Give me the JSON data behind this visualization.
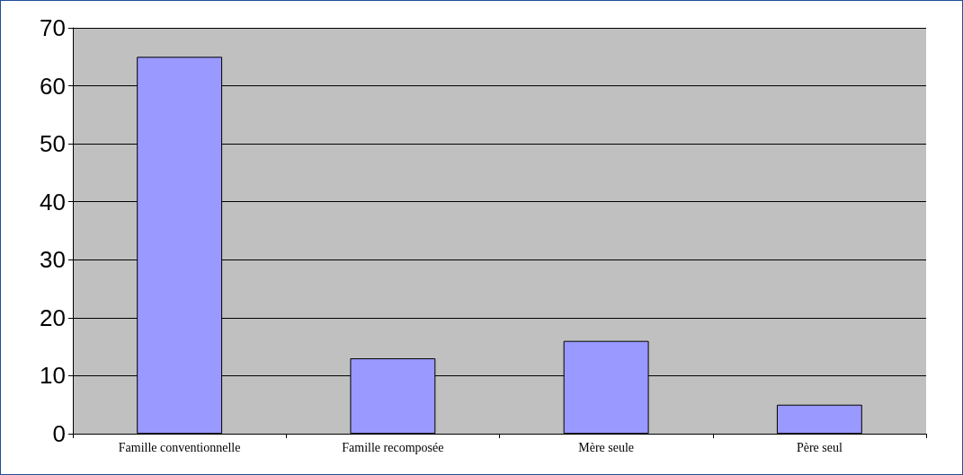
{
  "chart_data": {
    "type": "bar",
    "categories": [
      "Famille conventionnelle",
      "Famille recomposée",
      "Mère seule",
      "Père seul"
    ],
    "values": [
      65,
      13,
      16,
      5
    ],
    "color": "#9999ff",
    "ylim": [
      0,
      70
    ],
    "yticks": [
      0,
      10,
      20,
      30,
      40,
      50,
      60,
      70
    ],
    "grid": "y"
  }
}
